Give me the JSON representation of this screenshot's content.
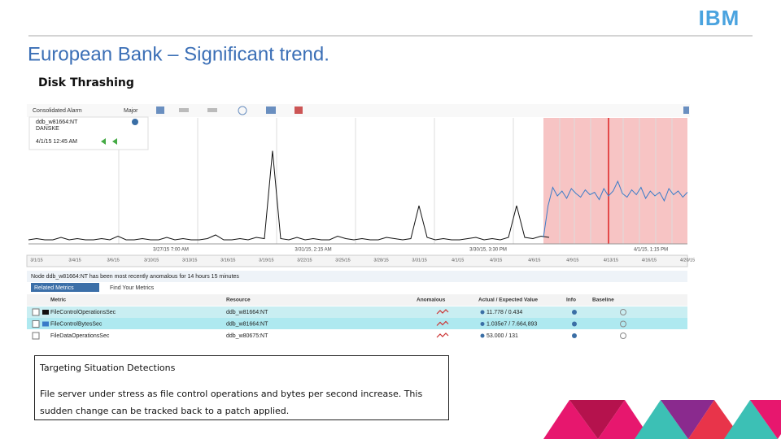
{
  "header": {
    "logo": "IBM",
    "title": "European Bank – Significant trend.",
    "subtitle": "Disk Thrashing"
  },
  "screenshot": {
    "alarm": {
      "label": "Consolidated Alarm",
      "severity": "Major",
      "node": "ddb_w81664:NT",
      "customer": "DANSKE",
      "time": "4/1/15 12:45 AM"
    },
    "chart": {
      "black": [
        2,
        3,
        2,
        2,
        4,
        2,
        3,
        2,
        2,
        3,
        2,
        5,
        2,
        2,
        3,
        2,
        2,
        4,
        2,
        3,
        2,
        2,
        3,
        6,
        2,
        2,
        3,
        2,
        4,
        3,
        75,
        3,
        2,
        4,
        2,
        3,
        2,
        2,
        5,
        3,
        2,
        3,
        2,
        2,
        4,
        3,
        2,
        3,
        30,
        4,
        2,
        3,
        2,
        2,
        3,
        4,
        2,
        3,
        2,
        4,
        30,
        4,
        3,
        5,
        4
      ],
      "blue": [
        4,
        30,
        45,
        38,
        42,
        36,
        44,
        40,
        37,
        43,
        39,
        41,
        35,
        44,
        38,
        42,
        50,
        40,
        37,
        43,
        39,
        45,
        36,
        42,
        38,
        41,
        34,
        44,
        39,
        42,
        37,
        41
      ],
      "dates": [
        "3/27/15 7:00 AM",
        "3/31/15, 2:15 AM",
        "3/30/15, 3:30 PM",
        "4/1/15, 1:15 PM"
      ],
      "timeline": [
        "3/1/15",
        "3/4/15",
        "3/6/15",
        "3/10/15",
        "3/13/15",
        "3/16/15",
        "3/19/15",
        "3/22/15",
        "3/25/15",
        "3/28/15",
        "3/31/15",
        "4/1/15",
        "4/3/15",
        "4/6/15",
        "4/9/15",
        "4/13/15",
        "4/16/15",
        "4/20/15"
      ]
    },
    "message": "Node ddb_w81664:NT has been most recently anomalous for 14 hours 15 minutes",
    "tabs": [
      "Related Metrics",
      "Find Your Metrics"
    ],
    "table": {
      "columns": [
        "Metric",
        "Resource",
        "Anomalous",
        "Actual / Expected Value",
        "Info",
        "Baseline"
      ],
      "rows": [
        [
          "FileControlOperationsSec",
          "ddb_w81664:NT",
          "11.778 / 0.434"
        ],
        [
          "FileControlBytesSec",
          "ddb_w81664:NT",
          "1.035e7 / 7.664,893"
        ],
        [
          "FileDataOperationsSec",
          "ddb_w80675:NT",
          "53.000 / 131"
        ]
      ]
    }
  },
  "caption": {
    "heading": "Targeting Situation Detections",
    "body": "File server under stress as file control operations and bytes per second increase. This sudden change can be tracked back to a patch applied."
  }
}
